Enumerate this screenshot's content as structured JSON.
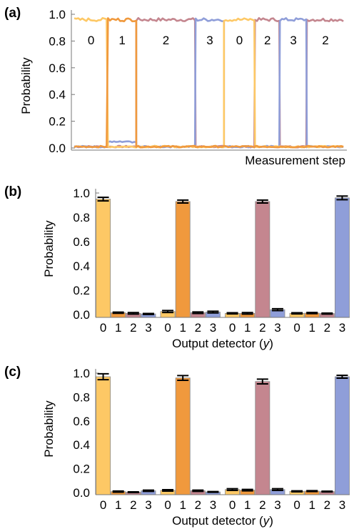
{
  "colors": {
    "s0": "#FDC865",
    "s1": "#F0993D",
    "s2": "#C4868F",
    "s3": "#8F9ED9"
  },
  "chart_data": [
    {
      "panel": "(a)",
      "type": "line",
      "xlabel": "Measurement step",
      "ylabel": "Probability",
      "ylim": [
        0,
        1
      ],
      "yticks": [
        "0.0",
        "0.2",
        "0.4",
        "0.6",
        "0.8",
        "1.0"
      ],
      "segment_labels": [
        "0",
        "1",
        "2",
        "3",
        "0",
        "2",
        "3",
        "2"
      ],
      "segments": [
        {
          "state": 0,
          "start": 0,
          "end": 50
        },
        {
          "state": 1,
          "start": 50,
          "end": 92
        },
        {
          "state": 2,
          "start": 92,
          "end": 180
        },
        {
          "state": 3,
          "start": 180,
          "end": 222
        },
        {
          "state": 0,
          "start": 222,
          "end": 268
        },
        {
          "state": 2,
          "start": 268,
          "end": 305
        },
        {
          "state": 3,
          "start": 305,
          "end": 345
        },
        {
          "state": 2,
          "start": 345,
          "end": 400
        }
      ],
      "high_value": 0.96,
      "low_value": 0.01,
      "series": [
        {
          "color": "#FDC865"
        },
        {
          "color": "#F0993D"
        },
        {
          "color": "#C4868F"
        },
        {
          "color": "#8F9ED9"
        }
      ]
    },
    {
      "panel": "(b)",
      "type": "bar",
      "xlabel_prefix": "Output detector (",
      "xlabel_var": "y",
      "xlabel_suffix": ")",
      "ylabel": "Probability",
      "ylim": [
        0,
        1
      ],
      "yticks": [
        "0.0",
        "0.2",
        "0.4",
        "0.6",
        "0.8",
        "1.0"
      ],
      "categories": [
        "0",
        "1",
        "2",
        "3"
      ],
      "groups": [
        {
          "values": [
            0.95,
            0.015,
            0.01,
            0.005
          ],
          "errors": [
            0.015,
            0.005,
            0.006,
            0.004
          ]
        },
        {
          "values": [
            0.025,
            0.93,
            0.015,
            0.02
          ],
          "errors": [
            0.008,
            0.012,
            0.006,
            0.007
          ]
        },
        {
          "values": [
            0.01,
            0.01,
            0.93,
            0.04
          ],
          "errors": [
            0.005,
            0.006,
            0.012,
            0.008
          ]
        },
        {
          "values": [
            0.01,
            0.012,
            0.008,
            0.96
          ],
          "errors": [
            0.005,
            0.005,
            0.004,
            0.015
          ]
        }
      ]
    },
    {
      "panel": "(c)",
      "type": "bar",
      "xlabel_prefix": "Output detector (",
      "xlabel_var": "y",
      "xlabel_suffix": ")",
      "ylabel": "Probability",
      "ylim": [
        0,
        1
      ],
      "yticks": [
        "0.0",
        "0.2",
        "0.4",
        "0.6",
        "0.8",
        "1.0"
      ],
      "categories": [
        "0",
        "1",
        "2",
        "3"
      ],
      "groups": [
        {
          "values": [
            0.97,
            0.008,
            0.003,
            0.015
          ],
          "errors": [
            0.025,
            0.005,
            0.003,
            0.005
          ]
        },
        {
          "values": [
            0.018,
            0.96,
            0.015,
            0.005
          ],
          "errors": [
            0.006,
            0.02,
            0.005,
            0.003
          ]
        },
        {
          "values": [
            0.025,
            0.02,
            0.93,
            0.025
          ],
          "errors": [
            0.007,
            0.006,
            0.02,
            0.007
          ]
        },
        {
          "values": [
            0.01,
            0.012,
            0.008,
            0.97
          ],
          "errors": [
            0.004,
            0.004,
            0.003,
            0.012
          ]
        }
      ]
    }
  ]
}
